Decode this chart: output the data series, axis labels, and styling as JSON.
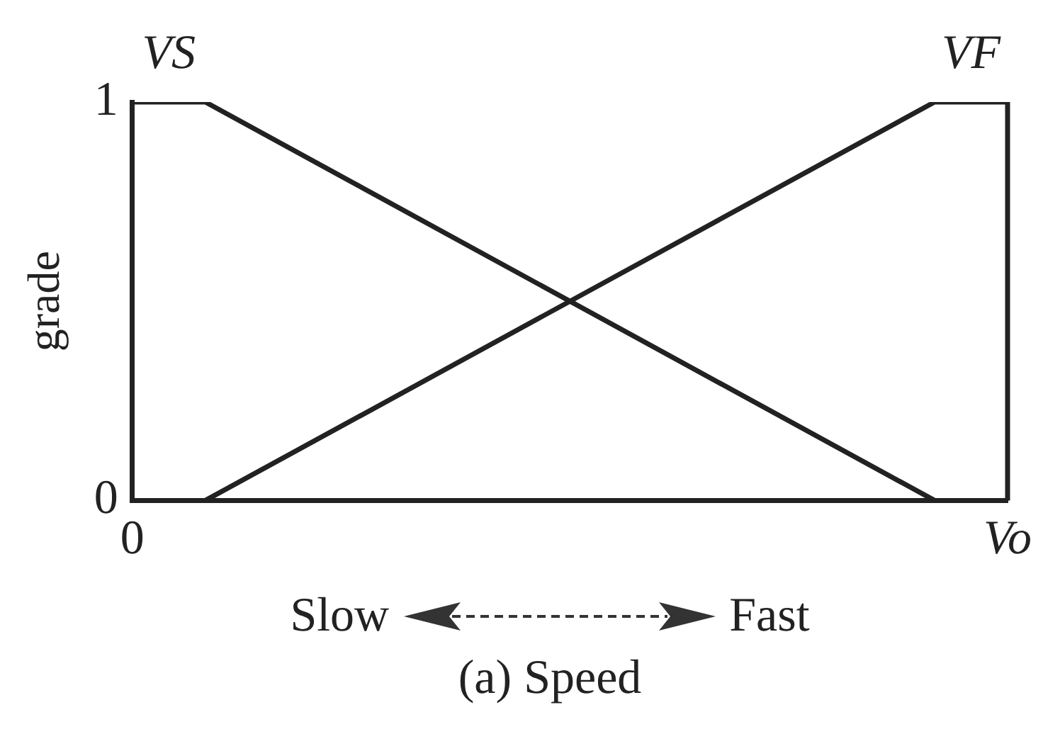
{
  "chart_data": {
    "type": "line",
    "title": "(a) Speed",
    "ylabel": "grade",
    "categories": [
      "0",
      null,
      null,
      null,
      null,
      null,
      null,
      null,
      null,
      null,
      null,
      null,
      "Vo"
    ],
    "ylim": [
      0,
      1
    ],
    "yticks": [
      0,
      1
    ],
    "grid": false,
    "legend": false,
    "marker": "none",
    "line_style": "solid",
    "series": [
      {
        "name": "VS",
        "color": "#222222",
        "values": [
          1,
          1,
          null,
          null,
          null,
          null,
          null,
          null,
          null,
          null,
          null,
          0,
          0
        ]
      },
      {
        "name": "VF",
        "color": "#222222",
        "values": [
          0,
          0,
          null,
          null,
          null,
          null,
          null,
          null,
          null,
          null,
          null,
          1,
          1
        ]
      }
    ],
    "annotations": [
      "Slow",
      "Fast"
    ]
  }
}
